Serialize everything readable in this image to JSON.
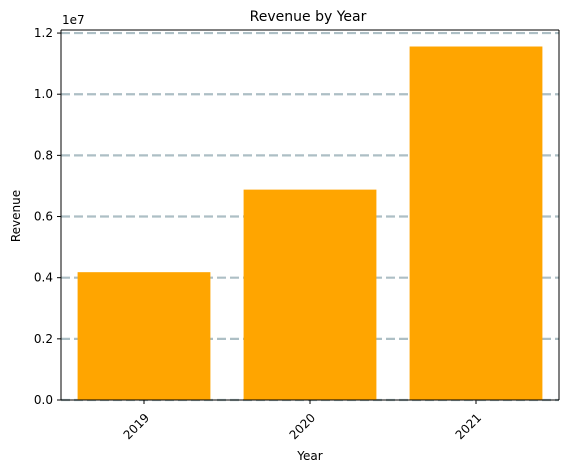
{
  "chart_data": {
    "type": "bar",
    "title": "Revenue by Year",
    "xlabel": "Year",
    "ylabel": "Revenue",
    "y_offset_label": "1e7",
    "y_scale": 10000000,
    "categories": [
      "2019",
      "2020",
      "2021"
    ],
    "values": [
      4180000,
      6880000,
      11560000
    ],
    "ylim": [
      0,
      12100000
    ],
    "yticks": [
      0,
      2000000,
      4000000,
      6000000,
      8000000,
      10000000,
      12000000
    ],
    "ytick_labels": [
      "0.0",
      "0.2",
      "0.4",
      "0.6",
      "0.8",
      "1.0",
      "1.2"
    ],
    "grid": {
      "axis": "y",
      "style": "dashed"
    },
    "xtick_rotation": 45,
    "legend": "none"
  },
  "colors": {
    "bar": "#ffa500",
    "grid": "#adbfc5",
    "axis": "#000000"
  }
}
